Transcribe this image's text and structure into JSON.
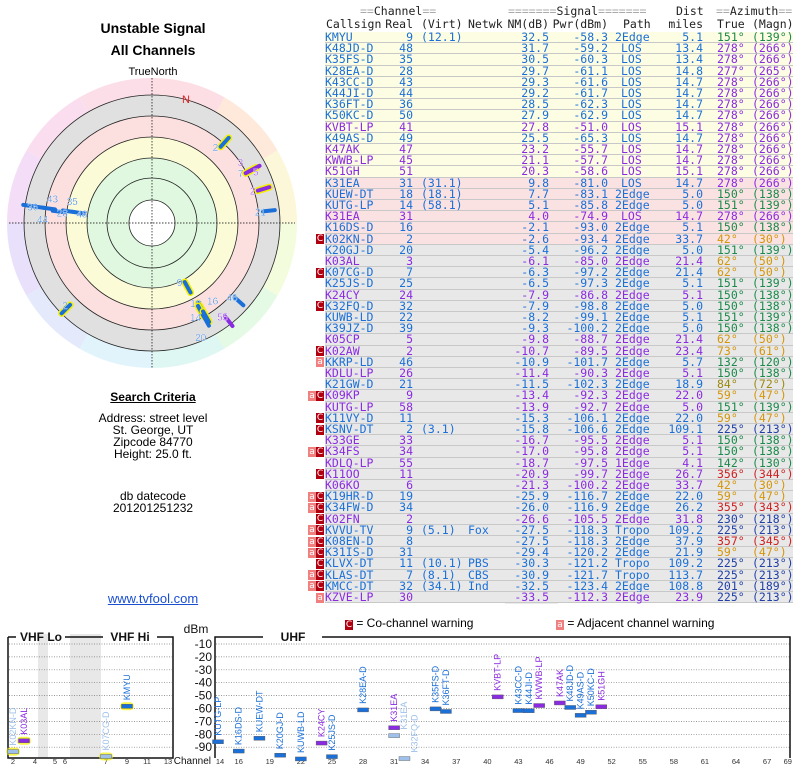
{
  "title": {
    "line1": "Unstable Signal",
    "line2": "All Channels"
  },
  "polar": {
    "north_label": "TrueNorth",
    "n_label": "N",
    "markers": [
      {
        "label": "2",
        "az": 42,
        "nm": -2.6,
        "cls": "d",
        "hl": true
      },
      {
        "label": "7",
        "az": 62,
        "nm": -6.3,
        "cls": "d",
        "hl": true
      },
      {
        "label": "3",
        "az": 62,
        "nm": -6.1,
        "cls": "a",
        "hl": true
      },
      {
        "label": "5",
        "az": 62,
        "nm": -9.8,
        "cls": "a",
        "hl": false
      },
      {
        "label": "2",
        "az": 73,
        "nm": -10.7,
        "cls": "a",
        "hl": true
      },
      {
        "label": "21",
        "az": 84,
        "nm": -11.5,
        "cls": "d",
        "hl": false
      },
      {
        "label": "46",
        "az": 132,
        "nm": -10.9,
        "cls": "d",
        "hl": false
      },
      {
        "label": "55",
        "az": 142,
        "nm": -18.7,
        "cls": "a",
        "hl": false
      },
      {
        "label": "9",
        "az": 151,
        "nm": 32.5,
        "cls": "d",
        "hl": true
      },
      {
        "label": "18",
        "az": 150,
        "nm": 7.7,
        "cls": "d",
        "hl": true
      },
      {
        "label": "14",
        "az": 151,
        "nm": 5.1,
        "cls": "d",
        "hl": true
      },
      {
        "label": "16",
        "az": 150,
        "nm": -2.1,
        "cls": "d",
        "hl": true
      },
      {
        "label": "20",
        "az": 151,
        "nm": -5.4,
        "cls": "d",
        "hl": false
      },
      {
        "label": "2",
        "az": 225,
        "nm": -15.8,
        "cls": "d",
        "hl": true
      },
      {
        "label": "48",
        "az": 278,
        "nm": 31.7,
        "cls": "d",
        "hl": false
      },
      {
        "label": "35",
        "az": 278,
        "nm": 22,
        "cls": "d",
        "hl": false
      },
      {
        "label": "28",
        "az": 277,
        "nm": 12,
        "cls": "d",
        "hl": false
      },
      {
        "label": "43",
        "az": 278,
        "nm": 2,
        "cls": "d",
        "hl": false
      },
      {
        "label": "44",
        "az": 278,
        "nm": -8,
        "cls": "d",
        "hl": false
      },
      {
        "label": "36",
        "az": 278,
        "nm": -18,
        "cls": "d",
        "hl": false
      }
    ]
  },
  "search": {
    "heading": "Search Criteria",
    "address": "Address: street level",
    "city": "St. George, UT",
    "zip": "Zipcode 84770",
    "height": "Height: 25.0 ft.",
    "db_label": "db datecode",
    "db_code": "201201251232"
  },
  "link": "www.tvfool.com",
  "table": {
    "group_channel": "Channel",
    "group_signal": "Signal",
    "group_dist": "Dist",
    "group_azimuth": "Azimuth",
    "headers": [
      "Callsign",
      "Real",
      "(Virt)",
      "Netwk",
      "NM(dB)",
      "Pwr(dBm)",
      "Path",
      "miles",
      "True",
      "(Magn)"
    ],
    "rows": [
      [
        "",
        "KMYU",
        "9",
        "(12.1)",
        "",
        "32.5",
        "-58.3",
        "2Edge",
        "5.1",
        "151°",
        "(139°)",
        "d"
      ],
      [
        "",
        "K48JD-D",
        "48",
        "",
        "",
        "31.7",
        "-59.2",
        "LOS",
        "13.4",
        "278°",
        "(266°)",
        "d"
      ],
      [
        "",
        "K35FS-D",
        "35",
        "",
        "",
        "30.5",
        "-60.3",
        "LOS",
        "13.4",
        "278°",
        "(266°)",
        "d"
      ],
      [
        "",
        "K28EA-D",
        "28",
        "",
        "",
        "29.7",
        "-61.1",
        "LOS",
        "14.8",
        "277°",
        "(265°)",
        "d"
      ],
      [
        "",
        "K43CC-D",
        "43",
        "",
        "",
        "29.3",
        "-61.6",
        "LOS",
        "14.7",
        "278°",
        "(266°)",
        "d"
      ],
      [
        "",
        "K44JI-D",
        "44",
        "",
        "",
        "29.2",
        "-61.7",
        "LOS",
        "14.7",
        "278°",
        "(266°)",
        "d"
      ],
      [
        "",
        "K36FT-D",
        "36",
        "",
        "",
        "28.5",
        "-62.3",
        "LOS",
        "14.7",
        "278°",
        "(266°)",
        "d"
      ],
      [
        "",
        "K50KC-D",
        "50",
        "",
        "",
        "27.9",
        "-62.9",
        "LOS",
        "14.7",
        "278°",
        "(266°)",
        "d"
      ],
      [
        "",
        "KVBT-LP",
        "41",
        "",
        "",
        "27.8",
        "-51.0",
        "LOS",
        "15.1",
        "278°",
        "(266°)",
        "a"
      ],
      [
        "",
        "K49AS-D",
        "49",
        "",
        "",
        "25.5",
        "-65.3",
        "LOS",
        "14.7",
        "278°",
        "(266°)",
        "d"
      ],
      [
        "",
        "K47AK",
        "47",
        "",
        "",
        "23.2",
        "-55.7",
        "LOS",
        "14.7",
        "278°",
        "(266°)",
        "a"
      ],
      [
        "",
        "KWWB-LP",
        "45",
        "",
        "",
        "21.1",
        "-57.7",
        "LOS",
        "14.7",
        "278°",
        "(266°)",
        "a"
      ],
      [
        "",
        "K51GH",
        "51",
        "",
        "",
        "20.3",
        "-58.6",
        "LOS",
        "15.1",
        "278°",
        "(266°)",
        "a"
      ],
      [
        "",
        "K31EA",
        "31",
        "(31.1)",
        "",
        "9.8",
        "-81.0",
        "LOS",
        "14.7",
        "278°",
        "(266°)",
        "d"
      ],
      [
        "",
        "KUEW-DT",
        "18",
        "(18.1)",
        "",
        "7.7",
        "-83.1",
        "2Edge",
        "5.0",
        "150°",
        "(138°)",
        "d"
      ],
      [
        "",
        "KUTG-LP",
        "14",
        "(58.1)",
        "",
        "5.1",
        "-85.8",
        "2Edge",
        "5.0",
        "151°",
        "(139°)",
        "d"
      ],
      [
        "",
        "K31EA",
        "31",
        "",
        "",
        "4.0",
        "-74.9",
        "LOS",
        "14.7",
        "278°",
        "(266°)",
        "a"
      ],
      [
        "",
        "K16DS-D",
        "16",
        "",
        "",
        "-2.1",
        "-93.0",
        "2Edge",
        "5.1",
        "150°",
        "(138°)",
        "d"
      ],
      [
        "C",
        "K02KN-D",
        "2",
        "",
        "",
        "-2.6",
        "-93.4",
        "2Edge",
        "33.7",
        "42°",
        "(30°)",
        "d"
      ],
      [
        "",
        "K20GJ-D",
        "20",
        "",
        "",
        "-5.4",
        "-96.2",
        "2Edge",
        "5.0",
        "151°",
        "(139°)",
        "d"
      ],
      [
        "",
        "K03AL",
        "3",
        "",
        "",
        "-6.1",
        "-85.0",
        "2Edge",
        "21.4",
        "62°",
        "(50°)",
        "a"
      ],
      [
        "C",
        "K07CG-D",
        "7",
        "",
        "",
        "-6.3",
        "-97.2",
        "2Edge",
        "21.4",
        "62°",
        "(50°)",
        "d"
      ],
      [
        "",
        "K25JS-D",
        "25",
        "",
        "",
        "-6.5",
        "-97.3",
        "2Edge",
        "5.1",
        "151°",
        "(139°)",
        "d"
      ],
      [
        "",
        "K24CY",
        "24",
        "",
        "",
        "-7.9",
        "-86.8",
        "2Edge",
        "5.1",
        "150°",
        "(138°)",
        "a"
      ],
      [
        "C",
        "K32FQ-D",
        "32",
        "",
        "",
        "-7.9",
        "-98.8",
        "2Edge",
        "5.0",
        "150°",
        "(138°)",
        "d"
      ],
      [
        "",
        "KUWB-LD",
        "22",
        "",
        "",
        "-8.2",
        "-99.1",
        "2Edge",
        "5.1",
        "151°",
        "(139°)",
        "d"
      ],
      [
        "",
        "K39JZ-D",
        "39",
        "",
        "",
        "-9.3",
        "-100.2",
        "2Edge",
        "5.0",
        "150°",
        "(138°)",
        "d"
      ],
      [
        "",
        "K05CP",
        "5",
        "",
        "",
        "-9.8",
        "-88.7",
        "2Edge",
        "21.4",
        "62°",
        "(50°)",
        "a"
      ],
      [
        "C",
        "K02AW",
        "2",
        "",
        "",
        "-10.7",
        "-89.5",
        "2Edge",
        "23.4",
        "73°",
        "(61°)",
        "a"
      ],
      [
        "a",
        "KKRP-LD",
        "46",
        "",
        "",
        "-10.9",
        "-101.7",
        "2Edge",
        "5.7",
        "132°",
        "(120°)",
        "d"
      ],
      [
        "",
        "KDLU-LP",
        "26",
        "",
        "",
        "-11.4",
        "-90.3",
        "2Edge",
        "5.1",
        "150°",
        "(138°)",
        "a"
      ],
      [
        "",
        "K21GW-D",
        "21",
        "",
        "",
        "-11.5",
        "-102.3",
        "2Edge",
        "18.9",
        "84°",
        "(72°)",
        "d"
      ],
      [
        "aC",
        "K09KP",
        "9",
        "",
        "",
        "-13.4",
        "-92.3",
        "2Edge",
        "22.0",
        "59°",
        "(47°)",
        "a"
      ],
      [
        "",
        "KUTG-LP",
        "58",
        "",
        "",
        "-13.9",
        "-92.7",
        "2Edge",
        "5.0",
        "151°",
        "(139°)",
        "a"
      ],
      [
        "C",
        "K11VY-D",
        "11",
        "",
        "",
        "-15.3",
        "-106.1",
        "2Edge",
        "22.0",
        "59°",
        "(47°)",
        "d"
      ],
      [
        "C",
        "KSNV-DT",
        "2",
        "(3.1)",
        "",
        "-15.8",
        "-106.6",
        "2Edge",
        "109.1",
        "225°",
        "(213°)",
        "d"
      ],
      [
        "",
        "K33GE",
        "33",
        "",
        "",
        "-16.7",
        "-95.5",
        "2Edge",
        "5.1",
        "150°",
        "(138°)",
        "a"
      ],
      [
        "aC",
        "K34FS",
        "34",
        "",
        "",
        "-17.0",
        "-95.8",
        "2Edge",
        "5.1",
        "150°",
        "(138°)",
        "a"
      ],
      [
        "",
        "KDLQ-LP",
        "55",
        "",
        "",
        "-18.7",
        "-97.5",
        "1Edge",
        "4.1",
        "142°",
        "(130°)",
        "a"
      ],
      [
        "C",
        "K11OO",
        "11",
        "",
        "",
        "-20.9",
        "-99.7",
        "2Edge",
        "26.7",
        "356°",
        "(344°)",
        "a"
      ],
      [
        "",
        "K06KO",
        "6",
        "",
        "",
        "-21.3",
        "-100.2",
        "2Edge",
        "33.7",
        "42°",
        "(30°)",
        "a"
      ],
      [
        "aC",
        "K19HR-D",
        "19",
        "",
        "",
        "-25.9",
        "-116.7",
        "2Edge",
        "22.0",
        "59°",
        "(47°)",
        "d"
      ],
      [
        "aC",
        "K34FW-D",
        "34",
        "",
        "",
        "-26.0",
        "-116.9",
        "2Edge",
        "26.2",
        "355°",
        "(343°)",
        "d"
      ],
      [
        "C",
        "K02FN",
        "2",
        "",
        "",
        "-26.6",
        "-105.5",
        "2Edge",
        "31.8",
        "230°",
        "(218°)",
        "a"
      ],
      [
        "aC",
        "KVVU-TV",
        "9",
        "(5.1)",
        "Fox",
        "-27.5",
        "-118.3",
        "Tropo",
        "109.2",
        "225°",
        "(213°)",
        "d"
      ],
      [
        "aC",
        "K08EN-D",
        "8",
        "",
        "",
        "-27.5",
        "-118.3",
        "2Edge",
        "37.9",
        "357°",
        "(345°)",
        "d"
      ],
      [
        "aC",
        "K31IS-D",
        "31",
        "",
        "",
        "-29.4",
        "-120.2",
        "2Edge",
        "21.9",
        "59°",
        "(47°)",
        "d"
      ],
      [
        "C",
        "KLVX-DT",
        "11",
        "(10.1)",
        "PBS",
        "-30.3",
        "-121.2",
        "Tropo",
        "109.2",
        "225°",
        "(213°)",
        "d"
      ],
      [
        "aC",
        "KLAS-DT",
        "7",
        "(8.1)",
        "CBS",
        "-30.9",
        "-121.7",
        "Tropo",
        "113.7",
        "225°",
        "(213°)",
        "d"
      ],
      [
        "aC",
        "KMCC-DT",
        "32",
        "(34.1)",
        "Ind",
        "-32.5",
        "-123.4",
        "2Edge",
        "108.8",
        "201°",
        "(189°)",
        "d"
      ],
      [
        "a",
        "KZVE-LP",
        "30",
        "",
        "",
        "-33.5",
        "-112.3",
        "2Edge",
        "23.9",
        "225°",
        "(213°)",
        "a"
      ]
    ]
  },
  "legend": {
    "co_flag": "C",
    "co_text": "= Co-channel warning",
    "adj_flag": "a",
    "adj_text": "= Adjacent channel warning"
  },
  "spectrum": {
    "vhf_lo": "VHF Lo",
    "vhf_hi": "VHF Hi",
    "uhf": "UHF",
    "unit": "dBm",
    "channel_label": "Channel",
    "dbm_ticks": [
      "-10",
      "-20",
      "-30",
      "-40",
      "-50",
      "-60",
      "-70",
      "-80",
      "-90"
    ],
    "vhf_channels": [
      "2",
      "4",
      "5",
      "6",
      "7",
      "9",
      "11",
      "13"
    ],
    "uhf_channels": [
      "14",
      "16",
      "19",
      "22",
      "25",
      "28",
      "31",
      "34",
      "37",
      "40",
      "43",
      "46",
      "49",
      "52",
      "55",
      "58",
      "61",
      "64",
      "67",
      "69"
    ],
    "stations": [
      {
        "call": "K02KN-D",
        "ch": 2,
        "pwr": -93.4,
        "cls": "d",
        "faded": true,
        "hl": true
      },
      {
        "call": "K03AL",
        "ch": 3,
        "pwr": -85.0,
        "cls": "a",
        "faded": false,
        "hl": true
      },
      {
        "call": "K07CG-D",
        "ch": 7,
        "pwr": -97.2,
        "cls": "d",
        "faded": true,
        "hl": true
      },
      {
        "call": "KMYU",
        "ch": 9,
        "pwr": -58.3,
        "cls": "d",
        "faded": false,
        "hl": true
      },
      {
        "call": "KUTG-LP",
        "ch": 14,
        "pwr": -85.8,
        "cls": "d",
        "faded": false,
        "hl": false
      },
      {
        "call": "K16DS-D",
        "ch": 16,
        "pwr": -93.0,
        "cls": "d",
        "faded": false,
        "hl": false
      },
      {
        "call": "KUEW-DT",
        "ch": 18,
        "pwr": -83.1,
        "cls": "d",
        "faded": false,
        "hl": false
      },
      {
        "call": "K20GJ-D",
        "ch": 20,
        "pwr": -96.2,
        "cls": "d",
        "faded": false,
        "hl": false
      },
      {
        "call": "KUWB-LD",
        "ch": 22,
        "pwr": -99.1,
        "cls": "d",
        "faded": false,
        "hl": false
      },
      {
        "call": "K24CY",
        "ch": 24,
        "pwr": -86.8,
        "cls": "a",
        "faded": false,
        "hl": false
      },
      {
        "call": "K25JS-D",
        "ch": 25,
        "pwr": -97.3,
        "cls": "d",
        "faded": false,
        "hl": false
      },
      {
        "call": "K28EA-D",
        "ch": 28,
        "pwr": -61.1,
        "cls": "d",
        "faded": false,
        "hl": false
      },
      {
        "call": "K31EA",
        "ch": 31,
        "pwr": -74.9,
        "cls": "a",
        "faded": false,
        "hl": false
      },
      {
        "call": "K31EA",
        "ch": 31,
        "pwr": -81.0,
        "cls": "d",
        "faded": true,
        "hl": false
      },
      {
        "call": "K32FQ-D",
        "ch": 32,
        "pwr": -98.8,
        "cls": "d",
        "faded": true,
        "hl": false
      },
      {
        "call": "K35FS-D",
        "ch": 35,
        "pwr": -60.3,
        "cls": "d",
        "faded": false,
        "hl": false
      },
      {
        "call": "K36FT-D",
        "ch": 36,
        "pwr": -62.3,
        "cls": "d",
        "faded": false,
        "hl": false
      },
      {
        "call": "KVBT-LP",
        "ch": 41,
        "pwr": -51.0,
        "cls": "a",
        "faded": false,
        "hl": false
      },
      {
        "call": "K43CC-D",
        "ch": 43,
        "pwr": -61.6,
        "cls": "d",
        "faded": false,
        "hl": false
      },
      {
        "call": "K44JI-D",
        "ch": 44,
        "pwr": -61.7,
        "cls": "d",
        "faded": false,
        "hl": false
      },
      {
        "call": "KWWB-LP",
        "ch": 45,
        "pwr": -57.7,
        "cls": "a",
        "faded": false,
        "hl": false
      },
      {
        "call": "K47AK",
        "ch": 47,
        "pwr": -55.7,
        "cls": "a",
        "faded": false,
        "hl": false
      },
      {
        "call": "K48JD-D",
        "ch": 48,
        "pwr": -59.2,
        "cls": "d",
        "faded": false,
        "hl": false
      },
      {
        "call": "K49AS-D",
        "ch": 49,
        "pwr": -65.3,
        "cls": "d",
        "faded": false,
        "hl": false
      },
      {
        "call": "K50KC-D",
        "ch": 50,
        "pwr": -62.9,
        "cls": "d",
        "faded": false,
        "hl": false
      },
      {
        "call": "K51GH",
        "ch": 51,
        "pwr": -58.6,
        "cls": "a",
        "faded": false,
        "hl": false
      }
    ]
  },
  "colors": {
    "digital": "#1a6fd8",
    "analog": "#8a2be2",
    "co_channel": "#b00010",
    "adjacent": "#f08080"
  }
}
